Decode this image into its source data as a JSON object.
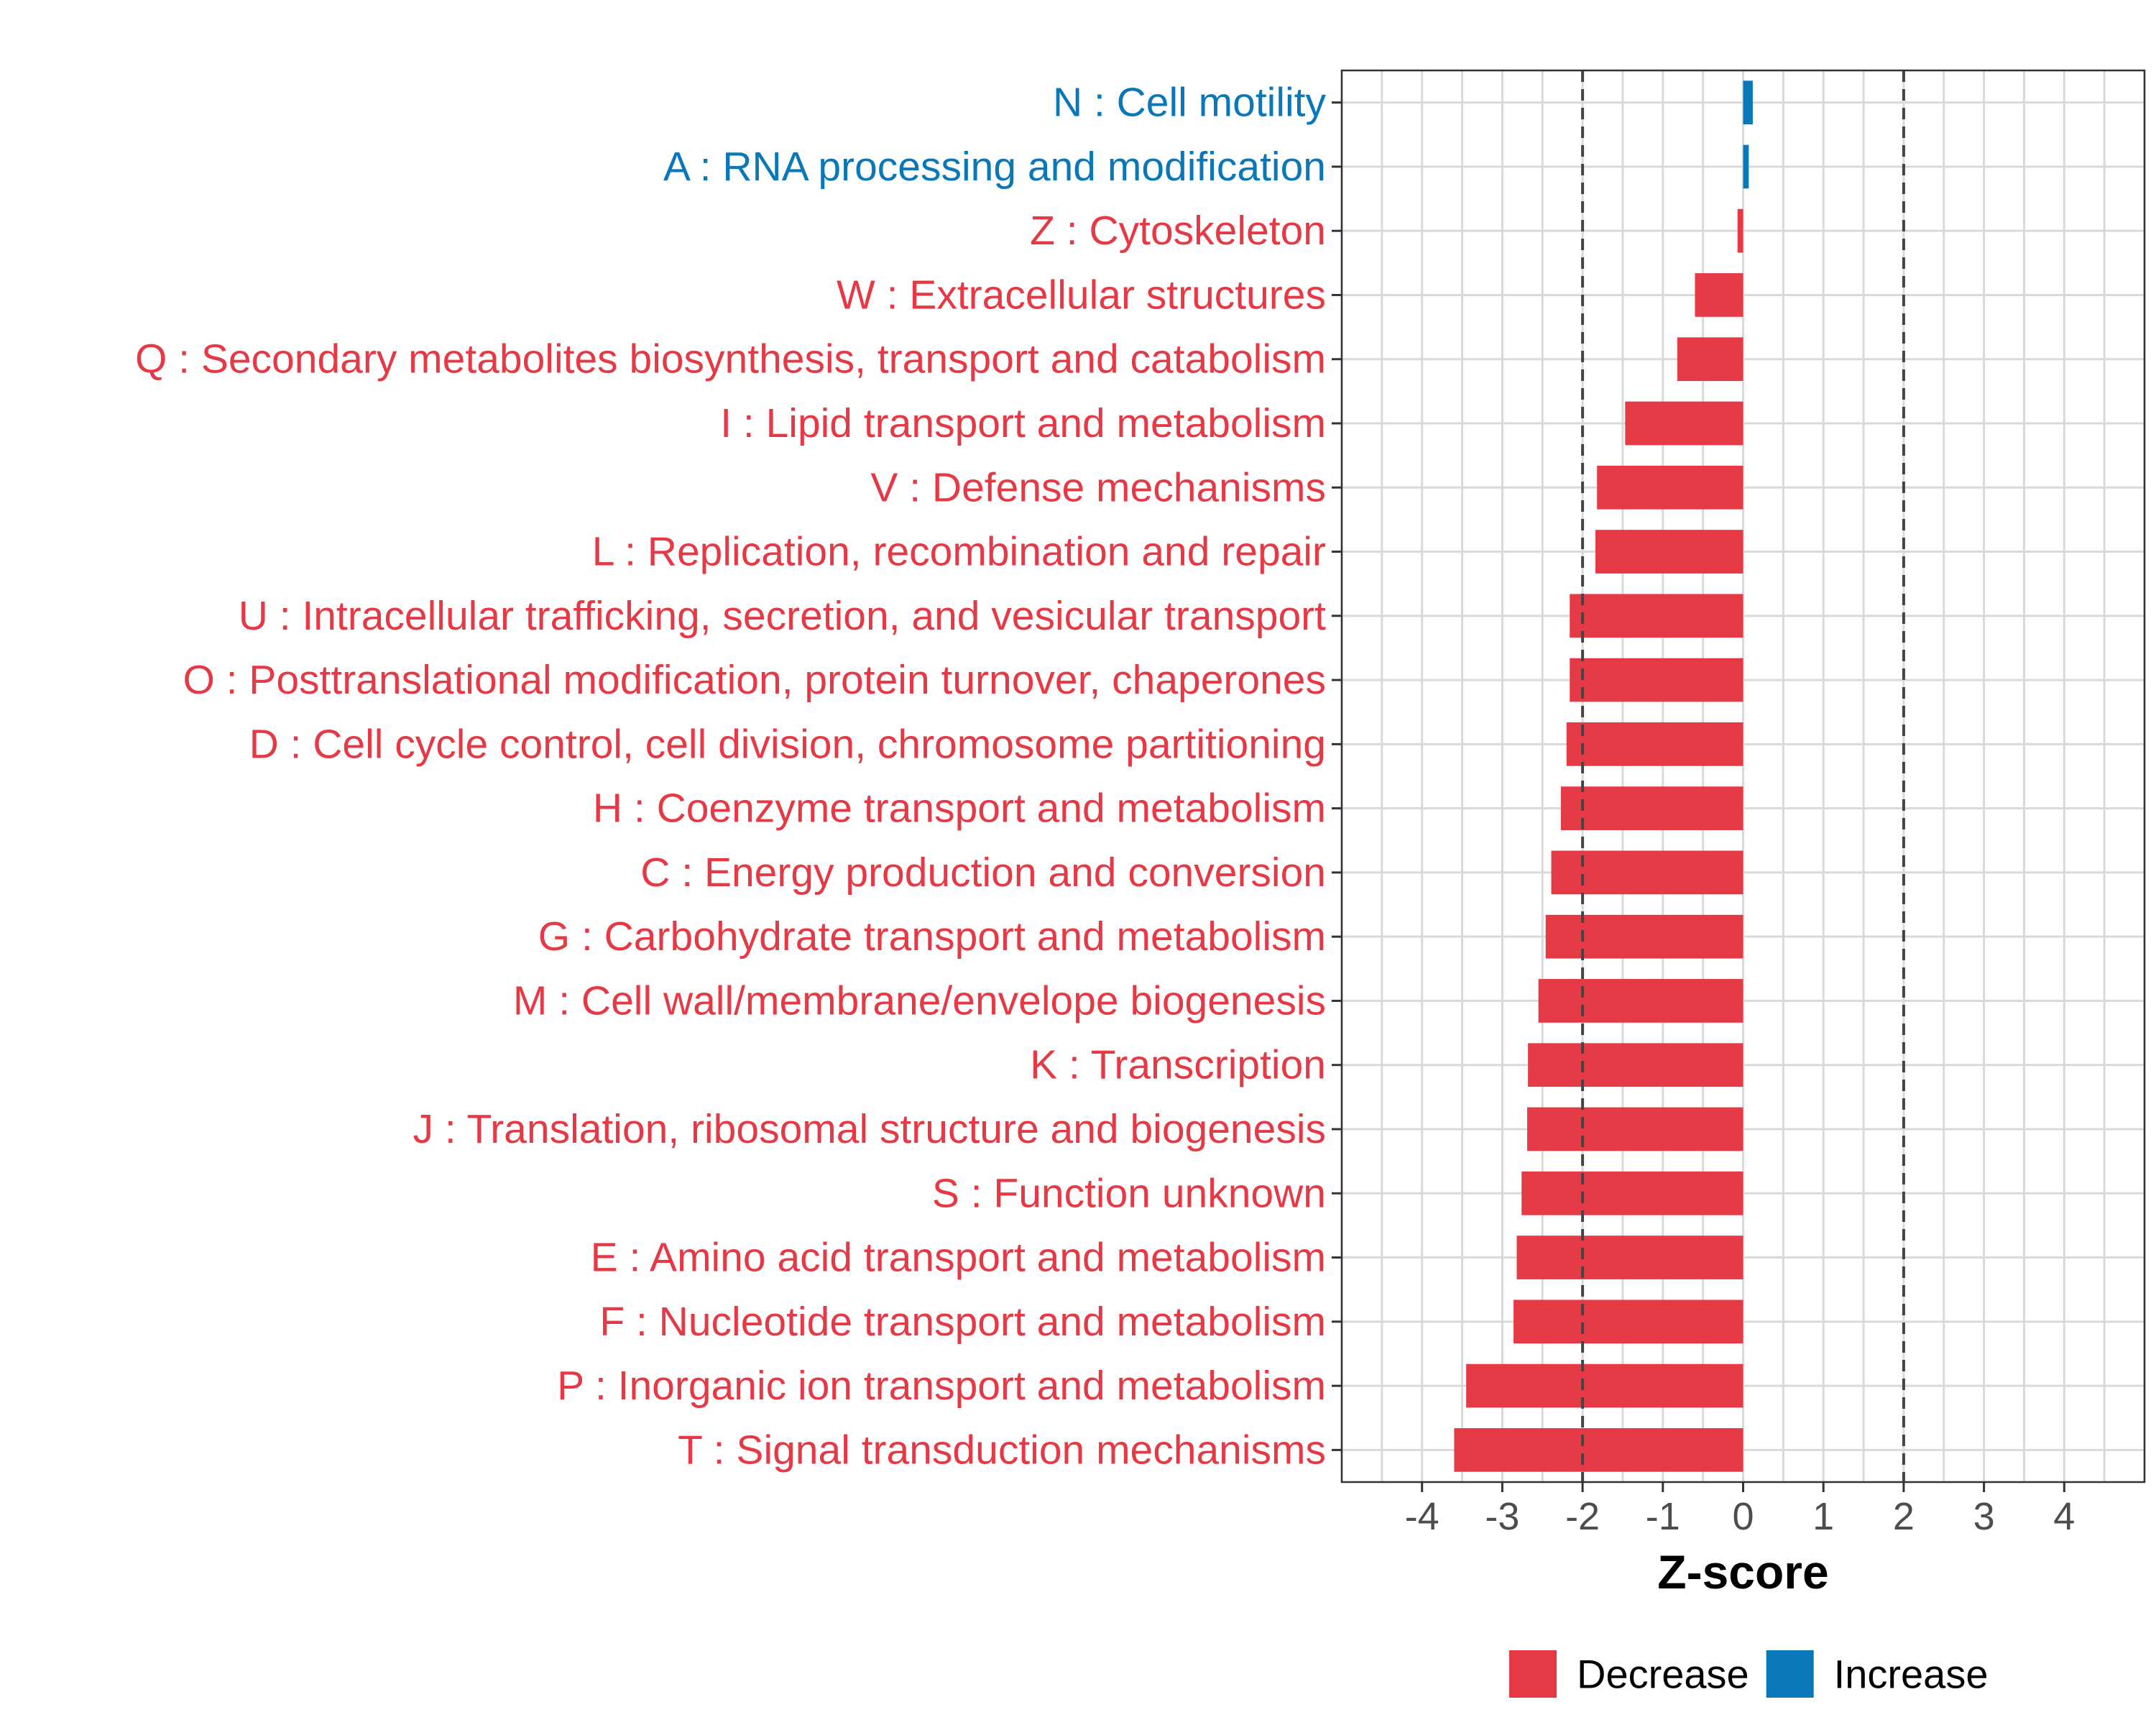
{
  "chart_data": {
    "type": "bar",
    "orientation": "horizontal",
    "title": "",
    "xlabel": "Z-score",
    "ylabel": "",
    "xlim": [
      -5,
      5
    ],
    "xticks": [
      "-4",
      "-3",
      "-2",
      "-1",
      "0",
      "1",
      "2",
      "3",
      "4"
    ],
    "xtick_values": [
      -4,
      -3,
      -2,
      -1,
      0,
      1,
      2,
      3,
      4
    ],
    "threshold_lines": [
      -2,
      2
    ],
    "grid": true,
    "categories": [
      "N : Cell motility",
      "A : RNA processing and modification",
      "Z : Cytoskeleton",
      "W : Extracellular structures",
      "Q : Secondary metabolites biosynthesis, transport and catabolism",
      "I : Lipid transport and metabolism",
      "V : Defense mechanisms",
      "L : Replication, recombination and repair",
      "U : Intracellular trafficking, secretion, and vesicular transport",
      "O : Posttranslational modification, protein turnover, chaperones",
      "D : Cell cycle control, cell division, chromosome partitioning",
      "H : Coenzyme transport and metabolism",
      "C : Energy production and conversion",
      "G : Carbohydrate transport and metabolism",
      "M : Cell wall/membrane/envelope biogenesis",
      "K : Transcription",
      "J : Translation, ribosomal structure and biogenesis",
      "S : Function unknown",
      "E : Amino acid transport and metabolism",
      "F : Nucleotide transport and metabolism",
      "P : Inorganic ion transport and metabolism",
      "T : Signal transduction mechanisms"
    ],
    "values": [
      0.12,
      0.07,
      -0.07,
      -0.6,
      -0.82,
      -1.47,
      -1.82,
      -1.84,
      -2.16,
      -2.16,
      -2.2,
      -2.27,
      -2.39,
      -2.46,
      -2.55,
      -2.68,
      -2.69,
      -2.76,
      -2.82,
      -2.86,
      -3.45,
      -3.6
    ],
    "groups": [
      "Increase",
      "Increase",
      "Decrease",
      "Decrease",
      "Decrease",
      "Decrease",
      "Decrease",
      "Decrease",
      "Decrease",
      "Decrease",
      "Decrease",
      "Decrease",
      "Decrease",
      "Decrease",
      "Decrease",
      "Decrease",
      "Decrease",
      "Decrease",
      "Decrease",
      "Decrease",
      "Decrease",
      "Decrease"
    ],
    "legend": {
      "position": "bottom",
      "entries": [
        {
          "label": "Decrease",
          "color": "#e63946"
        },
        {
          "label": "Increase",
          "color": "#0a77b8"
        }
      ]
    }
  }
}
